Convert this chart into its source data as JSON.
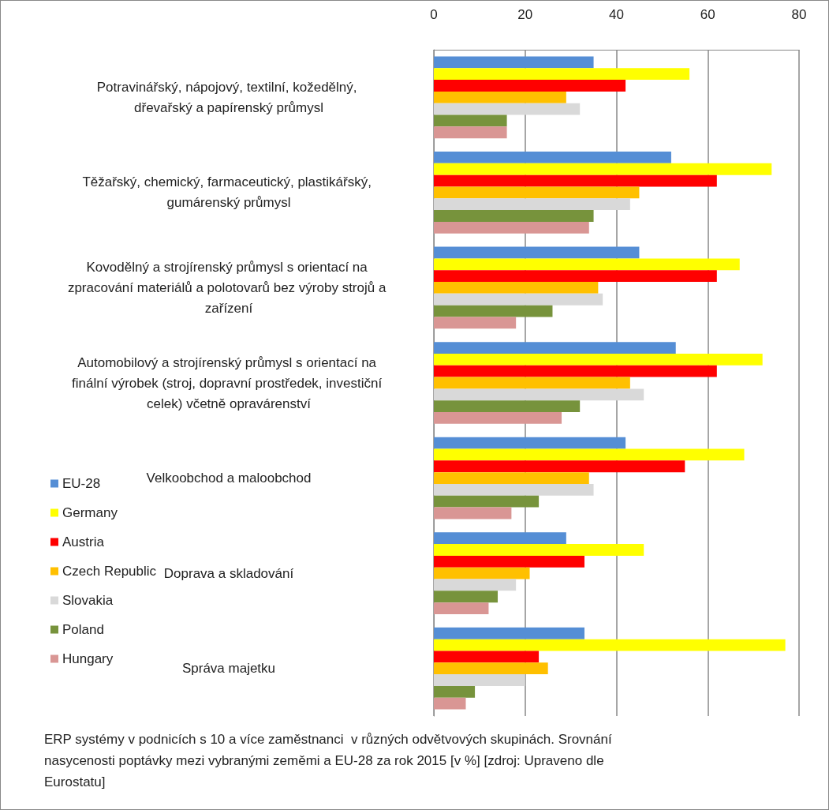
{
  "chart_data": {
    "type": "bar",
    "orientation": "horizontal",
    "categories": [
      "Potravinářský, nápojový, textilní, kožedělný, dřevařský a papírenský průmysl",
      "Těžařský, chemický, farmaceutický, plastikářský, gumárenský průmysl",
      "Kovodělný a strojírenský průmysl s orientací na zpracování materiálů a polotovarů bez výroby strojů a zařízení",
      "Automobilový a strojírenský průmysl s orientací na finální výrobek (stroj, dopravní prostředek, investiční celek) včetně opravárenství",
      "Velkoobchod a maloobchod",
      "Doprava a skladování",
      "Správa majetku"
    ],
    "series": [
      {
        "name": "EU-28",
        "color": "#558ed5",
        "values": [
          35,
          52,
          45,
          53,
          42,
          29,
          33
        ]
      },
      {
        "name": "Germany",
        "color": "#ffff00",
        "values": [
          56,
          74,
          67,
          72,
          68,
          46,
          77
        ]
      },
      {
        "name": "Austria",
        "color": "#ff0000",
        "values": [
          42,
          62,
          62,
          62,
          55,
          33,
          23
        ]
      },
      {
        "name": "Czech Republic",
        "color": "#ffc000",
        "values": [
          29,
          45,
          36,
          43,
          34,
          21,
          25
        ]
      },
      {
        "name": "Slovakia",
        "color": "#d9d9d9",
        "values": [
          32,
          43,
          37,
          46,
          35,
          18,
          20
        ]
      },
      {
        "name": "Poland",
        "color": "#77933c",
        "values": [
          16,
          35,
          26,
          32,
          23,
          14,
          9
        ]
      },
      {
        "name": "Hungary",
        "color": "#d99694",
        "values": [
          16,
          34,
          18,
          28,
          17,
          12,
          7
        ]
      }
    ],
    "xlim": [
      0,
      80
    ],
    "xticks": [
      0,
      20,
      40,
      60,
      80
    ],
    "grid": "x",
    "legend": "left",
    "annotations": [
      "ERP systémy v podnicích s 10 a více zaměstnanci  v různých odvětvových skupinách. Srovnání nasycenosti poptávky mezi vybranými zeměmi a EU-28 za rok 2015 [v %] [zdroj: Upraveno dle Eurostatu]"
    ]
  }
}
